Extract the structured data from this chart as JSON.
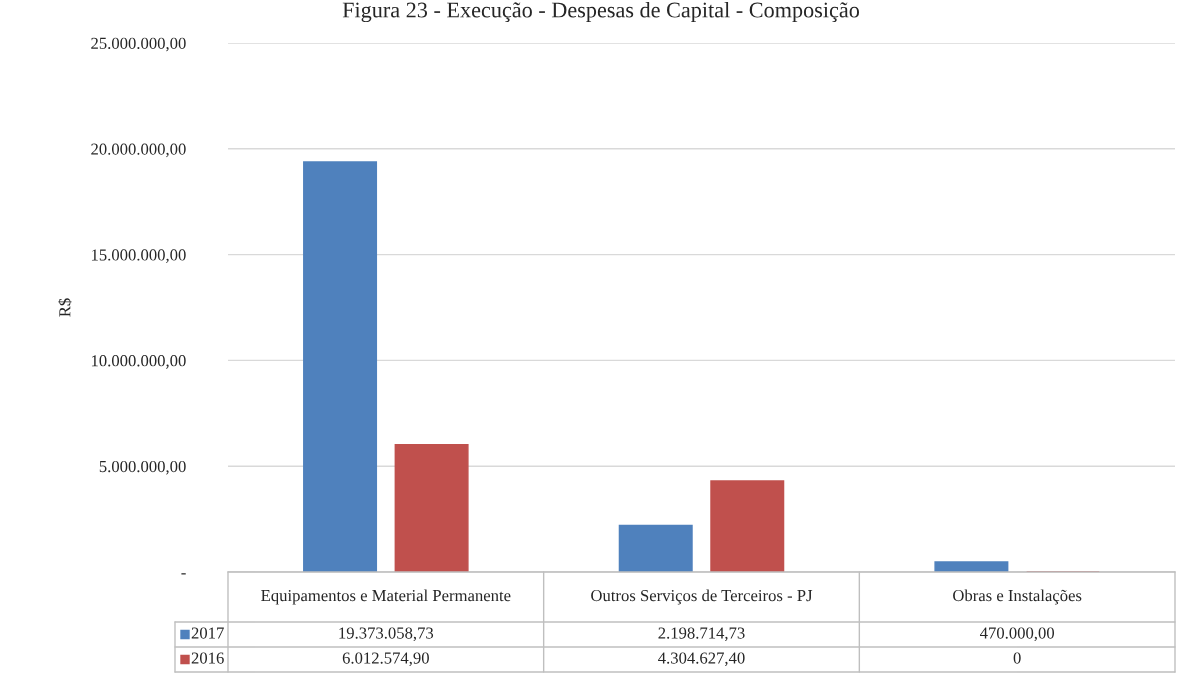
{
  "chart_data": {
    "type": "bar",
    "title": "Figura 23 - Execução - Despesas de Capital - Composição",
    "ylabel": "R$",
    "categories": [
      "Equipamentos e Material Permanente",
      "Outros Serviços de Terceiros - PJ",
      "Obras e Instalações"
    ],
    "series": [
      {
        "name": "2017",
        "color": "#4f81bd",
        "values": [
          19373058.73,
          2198714.73,
          470000.0
        ],
        "value_labels": [
          "19.373.058,73",
          "2.198.714,73",
          "470.000,00"
        ]
      },
      {
        "name": "2016",
        "color": "#c0504d",
        "values": [
          6012574.9,
          4304627.4,
          0
        ],
        "value_labels": [
          "6.012.574,90",
          "4.304.627,40",
          "0"
        ]
      }
    ],
    "ylim": [
      0,
      25000000
    ],
    "yticks": [
      {
        "value": 0,
        "label": "-"
      },
      {
        "value": 5000000,
        "label": "5.000.000,00"
      },
      {
        "value": 10000000,
        "label": "10.000.000,00"
      },
      {
        "value": 15000000,
        "label": "15.000.000,00"
      },
      {
        "value": 20000000,
        "label": "20.000.000,00"
      },
      {
        "value": 25000000,
        "label": "25.000.000,00"
      }
    ],
    "grid": "y",
    "legend": "bottom"
  }
}
